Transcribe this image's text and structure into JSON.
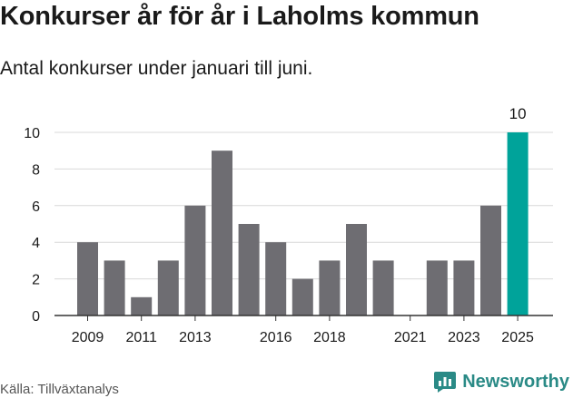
{
  "title": "Konkurser år för år i Laholms kommun",
  "subtitle": "Antal konkurser under januari till juni.",
  "source": "Källa: Tillväxtanalys",
  "brand": {
    "name": "Newsworthy",
    "icon": "newsworthy-logo-icon",
    "color": "#2a8a86"
  },
  "chart_data": {
    "type": "bar",
    "categories": [
      "2009",
      "2010",
      "2011",
      "2012",
      "2013",
      "2014",
      "2015",
      "2016",
      "2017",
      "2018",
      "2019",
      "2020",
      "2021",
      "2022",
      "2023",
      "2024",
      "2025"
    ],
    "values": [
      4,
      3,
      1,
      3,
      6,
      9,
      5,
      4,
      2,
      3,
      5,
      3,
      0,
      3,
      3,
      6,
      10
    ],
    "x_tick_labels": [
      "2009",
      "2011",
      "2013",
      "2016",
      "2018",
      "2021",
      "2023",
      "2025"
    ],
    "y_ticks": [
      0,
      2,
      4,
      6,
      8,
      10
    ],
    "ylim": [
      0,
      10
    ],
    "data_labels": [
      {
        "category": "2025",
        "text": "10"
      }
    ],
    "highlight": "2025",
    "colors": {
      "bar": "#6e6d72",
      "highlight": "#00a39a",
      "grid": "#d9d9d9",
      "axis": "#333333"
    },
    "grid": true,
    "xlabel": "",
    "ylabel": ""
  }
}
